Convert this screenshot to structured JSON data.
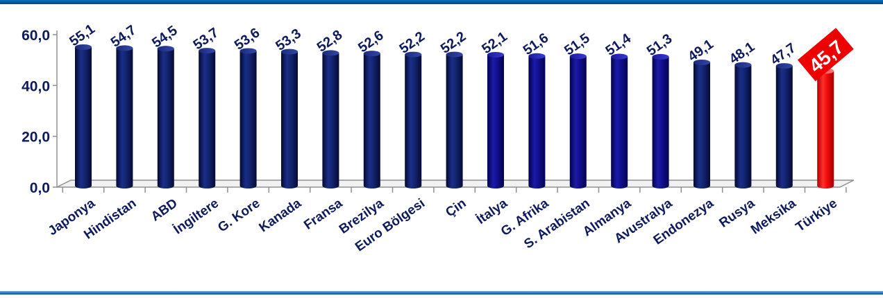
{
  "chart_data": {
    "type": "bar",
    "title": "",
    "xlabel": "",
    "ylabel": "",
    "ylim": [
      0,
      60
    ],
    "yticks": [
      0,
      20,
      40,
      60
    ],
    "ytick_labels": [
      "0,0",
      "20,0",
      "40,0",
      "60,0"
    ],
    "grid": false,
    "legend": "none",
    "categories": [
      "Japonya",
      "Hindistan",
      "ABD",
      "İngiltere",
      "G. Kore",
      "Kanada",
      "Fransa",
      "Brezilya",
      "Euro Bölgesi",
      "Çin",
      "İtalya",
      "G. Afrika",
      "S. Arabistan",
      "Almanya",
      "Avustralya",
      "Endonezya",
      "Rusya",
      "Meksika",
      "Türkiye"
    ],
    "values": [
      55.1,
      54.7,
      54.5,
      53.7,
      53.6,
      53.3,
      52.8,
      52.6,
      52.2,
      52.2,
      52.1,
      51.6,
      51.5,
      51.4,
      51.3,
      49.1,
      48.1,
      47.7,
      45.7
    ],
    "value_labels": [
      "55,1",
      "54,7",
      "54,5",
      "53,7",
      "53,6",
      "53,3",
      "52,8",
      "52,6",
      "52,2",
      "52,2",
      "52,1",
      "51,6",
      "51,5",
      "51,4",
      "51,3",
      "49,1",
      "48,1",
      "47,7",
      "45,7"
    ],
    "highlight_index": 18,
    "colors": {
      "bar": "#0d1a5c",
      "bar_alt": "#09087a",
      "highlight": "#ee0000",
      "label": "#0d1a5c",
      "highlight_label_text": "#ffffff",
      "axis": "#8f8f8f",
      "floor": "#f1f1f1"
    }
  }
}
